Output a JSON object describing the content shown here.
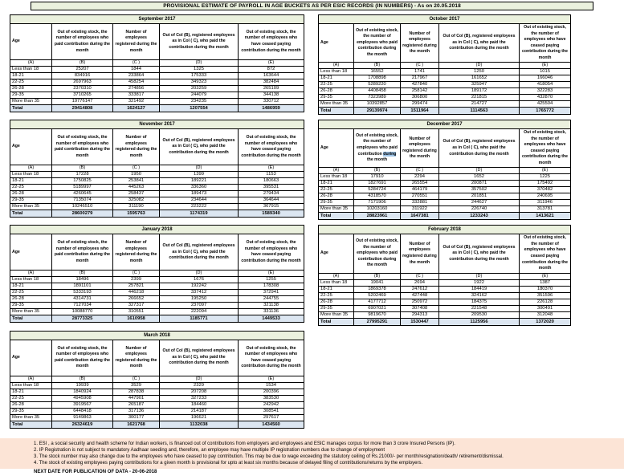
{
  "title": "PROVISIONAL ESTIMATE OF PAYROLL IN AGE BUCKETS AS PER ESIC RECORDS (IN NUMBERS) - As on 20.05.2018",
  "columns": {
    "age_label": "Age",
    "col_b": "Out of existing stock, the number of employees who paid contribution during the month",
    "col_c": "Number of employees registered during the month",
    "col_d": "Out of Col (B), registered employees as in Col ( C), who paid the contribution during the month",
    "col_e": "Out of existing stock, the number of employees who have ceased paying contribution during the month",
    "letters": [
      "(A)",
      "(B)",
      "(C )",
      "(D)",
      "(E)"
    ]
  },
  "age_groups": [
    "Less than 18",
    "18-21",
    "22-25",
    "26-28",
    "29-35",
    "More than 35"
  ],
  "total_label": "Total",
  "tables": [
    {
      "month": "September 2017",
      "rows": [
        [
          "25207",
          "1844",
          "1325",
          "872"
        ],
        [
          "834916",
          "233864",
          "175333",
          "163644"
        ],
        [
          "2697963",
          "458254",
          "349323",
          "382484"
        ],
        [
          "2370310",
          "274856",
          "203259",
          "265109"
        ],
        [
          "3710265",
          "333817",
          "244079",
          "344138"
        ],
        [
          "19776147",
          "321492",
          "234235",
          "330712"
        ]
      ],
      "total": [
        "29414808",
        "1624127",
        "1207554",
        "1486959"
      ]
    },
    {
      "month": "October 2017",
      "rows": [
        [
          "16552",
          "1741",
          "1250",
          "1015"
        ],
        [
          "1708898",
          "217967",
          "161652",
          "166046"
        ],
        [
          "5289220",
          "427840",
          "325947",
          "418054"
        ],
        [
          "4408458",
          "258142",
          "189172",
          "322283"
        ],
        [
          "7323989",
          "306800",
          "221815",
          "432870"
        ],
        [
          "10392857",
          "299474",
          "214727",
          "425504"
        ]
      ],
      "total": [
        "29139974",
        "1511964",
        "1114563",
        "1765772"
      ]
    },
    {
      "month": "November 2017",
      "rows": [
        [
          "17228",
          "1950",
          "1399",
          "1153"
        ],
        [
          "1750825",
          "253841",
          "189221",
          "180663"
        ],
        [
          "5189997",
          "445263",
          "336360",
          "395531"
        ],
        [
          "4260645",
          "258437",
          "189473",
          "279434"
        ],
        [
          "7135074",
          "325082",
          "234644",
          "364644"
        ],
        [
          "10246510",
          "311190",
          "223222",
          "367915"
        ]
      ],
      "total": [
        "28600279",
        "1595763",
        "1174319",
        "1589340"
      ]
    },
    {
      "month": "December 2017",
      "highlight_word": "during",
      "rows": [
        [
          "17910",
          "2294",
          "1652",
          "1225"
        ],
        [
          "1827691",
          "265554",
          "200871",
          "175492"
        ],
        [
          "5284724",
          "464179",
          "357502",
          "370482"
        ],
        [
          "4318570",
          "270551",
          "201851",
          "240695"
        ],
        [
          "7171906",
          "332881",
          "244627",
          "311946"
        ],
        [
          "10203160",
          "311922",
          "226740",
          "313781"
        ]
      ],
      "total": [
        "28823961",
        "1647381",
        "1233243",
        "1413621"
      ]
    },
    {
      "month": "January 2018",
      "rows": [
        [
          "18496",
          "2399",
          "1676",
          "1255"
        ],
        [
          "1891101",
          "257821",
          "192242",
          "178308"
        ],
        [
          "5333193",
          "446218",
          "337412",
          "372941"
        ],
        [
          "4314731",
          "266652",
          "195250",
          "244755"
        ],
        [
          "7127034",
          "327317",
          "237097",
          "321138"
        ],
        [
          "10088770",
          "310551",
          "222094",
          "331136"
        ]
      ],
      "total": [
        "28773325",
        "1610958",
        "1185771",
        "1449533"
      ]
    },
    {
      "month": "February 2018",
      "rows": [
        [
          "19041",
          "2694",
          "1922",
          "1387"
        ],
        [
          "1869378",
          "247612",
          "184419",
          "180370"
        ],
        [
          "5202469",
          "427448",
          "324162",
          "351596"
        ],
        [
          "4177712",
          "250972",
          "184375",
          "226128"
        ],
        [
          "6907021",
          "307408",
          "221548",
          "300491"
        ],
        [
          "9819670",
          "294313",
          "209530",
          "312048"
        ]
      ],
      "total": [
        "27995291",
        "1530447",
        "1125956",
        "1372020"
      ]
    },
    {
      "month": "March 2018",
      "rows": [
        [
          "19939",
          "3529",
          "2329",
          "1534"
        ],
        [
          "1840924",
          "287838",
          "207208",
          "200396"
        ],
        [
          "4945908",
          "447901",
          "327233",
          "383530"
        ],
        [
          "3919567",
          "265187",
          "184460",
          "242942"
        ],
        [
          "6448418",
          "317136",
          "214187",
          "308541"
        ],
        [
          "9149863",
          "300177",
          "196621",
          "297617"
        ]
      ],
      "total": [
        "26324619",
        "1621768",
        "1132038",
        "1434560"
      ]
    }
  ],
  "footnotes": [
    "1. ESI , a social security and health scheme for Indian workers, is financed out of contributions from employers and employees and ESIC manages corpus for more than 3 crore Insured Persons (IP).",
    "2. IP Registration is not subject to mandatory Aadhaar seeding and, therefore, an employee may have multiple IP registration numbers due to change of employment",
    "3. The stock number may also change due to the employees who have ceased to pay contribution. This may  be due to wage exceeding the statutory ceiling of  Rs.21000/- per month/resignation/death/ retirement/dismissal.",
    "4. The stock of existing employees paying contributions for a given month is provisional for upto at least six months because of delayed filing of contributions/returns by the employers."
  ],
  "next_date": "NEXT DATE FOR PUBLICATION OF DATA - 20-06-2018",
  "colors": {
    "header_green": "#ebf1de",
    "total_blue": "#dce6f1",
    "footnote_peach": "#fce4d6",
    "selection_blue": "#9dc3e6"
  }
}
